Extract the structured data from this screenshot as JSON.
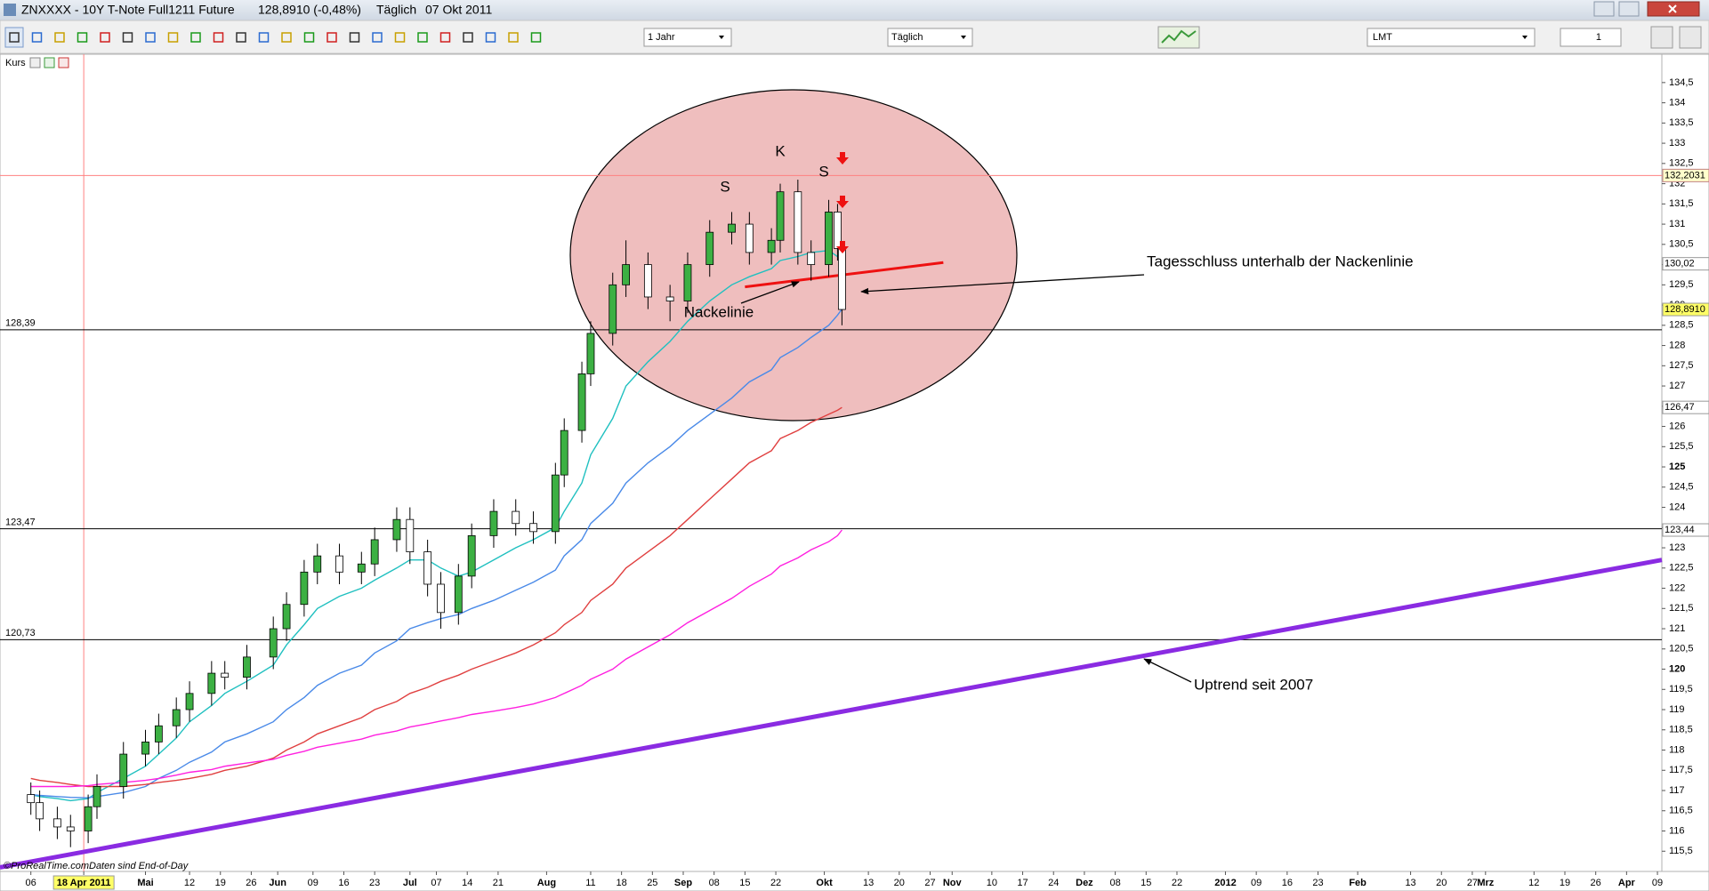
{
  "window": {
    "title": "ZNXXXX - 10Y T-Note Full1211 Future",
    "price": "128,8910 (-0,48%)",
    "period": "Täglich",
    "date": "07 Okt 2011"
  },
  "toolbar": {
    "range": "1 Jahr",
    "interval": "Täglich",
    "order_type": "LMT",
    "quantity": "1"
  },
  "panel_label": "Kurs",
  "footer": {
    "copyright": "©ProRealTime.com",
    "note": "Daten sind End-of-Day"
  },
  "chart_data": {
    "type": "candlestick",
    "x": [
      "2011-04-06",
      "2011-04-08",
      "2011-04-12",
      "2011-04-15",
      "2011-04-19",
      "2011-04-21",
      "2011-04-27",
      "2011-05-02",
      "2011-05-05",
      "2011-05-09",
      "2011-05-12",
      "2011-05-17",
      "2011-05-20",
      "2011-05-25",
      "2011-05-31",
      "2011-06-03",
      "2011-06-07",
      "2011-06-10",
      "2011-06-15",
      "2011-06-20",
      "2011-06-23",
      "2011-06-28",
      "2011-07-01",
      "2011-07-05",
      "2011-07-08",
      "2011-07-12",
      "2011-07-15",
      "2011-07-20",
      "2011-07-25",
      "2011-07-29",
      "2011-08-03",
      "2011-08-05",
      "2011-08-09",
      "2011-08-11",
      "2011-08-16",
      "2011-08-19",
      "2011-08-24",
      "2011-08-29",
      "2011-09-02",
      "2011-09-07",
      "2011-09-12",
      "2011-09-16",
      "2011-09-21",
      "2011-09-23",
      "2011-09-27",
      "2011-09-30",
      "2011-10-04",
      "2011-10-06",
      "2011-10-07"
    ],
    "ohlc": [
      [
        116.9,
        117.2,
        116.4,
        116.7
      ],
      [
        116.7,
        117.0,
        116.0,
        116.3
      ],
      [
        116.3,
        116.6,
        115.8,
        116.1
      ],
      [
        116.1,
        116.4,
        115.6,
        116.0
      ],
      [
        116.0,
        116.9,
        115.7,
        116.6
      ],
      [
        116.6,
        117.4,
        116.3,
        117.1
      ],
      [
        117.1,
        118.2,
        116.8,
        117.9
      ],
      [
        117.9,
        118.5,
        117.6,
        118.2
      ],
      [
        118.2,
        118.9,
        117.9,
        118.6
      ],
      [
        118.6,
        119.3,
        118.3,
        119.0
      ],
      [
        119.0,
        119.7,
        118.7,
        119.4
      ],
      [
        119.4,
        120.2,
        119.1,
        119.9
      ],
      [
        119.9,
        120.2,
        119.5,
        119.8
      ],
      [
        119.8,
        120.6,
        119.5,
        120.3
      ],
      [
        120.3,
        121.3,
        120.0,
        121.0
      ],
      [
        121.0,
        121.9,
        120.7,
        121.6
      ],
      [
        121.6,
        122.7,
        121.3,
        122.4
      ],
      [
        122.4,
        123.1,
        122.1,
        122.8
      ],
      [
        122.8,
        123.1,
        122.1,
        122.4
      ],
      [
        122.4,
        122.9,
        122.1,
        122.6
      ],
      [
        122.6,
        123.5,
        122.3,
        123.2
      ],
      [
        123.2,
        124.0,
        122.9,
        123.7
      ],
      [
        123.7,
        124.0,
        122.6,
        122.9
      ],
      [
        122.9,
        123.2,
        121.8,
        122.1
      ],
      [
        122.1,
        122.4,
        121.0,
        121.4
      ],
      [
        121.4,
        122.6,
        121.1,
        122.3
      ],
      [
        122.3,
        123.6,
        122.0,
        123.3
      ],
      [
        123.3,
        124.2,
        123.0,
        123.9
      ],
      [
        123.9,
        124.2,
        123.3,
        123.6
      ],
      [
        123.6,
        123.9,
        123.1,
        123.4
      ],
      [
        123.4,
        125.1,
        123.1,
        124.8
      ],
      [
        124.8,
        126.2,
        124.5,
        125.9
      ],
      [
        125.9,
        127.6,
        125.6,
        127.3
      ],
      [
        127.3,
        128.6,
        127.0,
        128.3
      ],
      [
        128.3,
        129.8,
        128.0,
        129.5
      ],
      [
        129.5,
        130.6,
        129.2,
        130.0
      ],
      [
        130.0,
        130.3,
        128.9,
        129.2
      ],
      [
        129.2,
        129.5,
        128.6,
        129.1
      ],
      [
        129.1,
        130.3,
        128.8,
        130.0
      ],
      [
        130.0,
        131.1,
        129.7,
        130.8
      ],
      [
        130.8,
        131.3,
        130.5,
        131.0
      ],
      [
        131.0,
        131.3,
        130.0,
        130.3
      ],
      [
        130.3,
        130.9,
        130.0,
        130.6
      ],
      [
        130.6,
        132.0,
        130.3,
        131.8
      ],
      [
        131.8,
        132.1,
        130.0,
        130.3
      ],
      [
        130.3,
        130.6,
        129.6,
        130.0
      ],
      [
        130.0,
        131.6,
        129.7,
        131.3
      ],
      [
        131.3,
        131.5,
        130.1,
        130.4
      ],
      [
        130.4,
        130.4,
        128.5,
        128.891
      ]
    ],
    "up_color": "#3cb043",
    "down_color": "#ffffff",
    "series": [
      {
        "color": "#20c0c0",
        "values": [
          116.9,
          116.85,
          116.8,
          116.75,
          116.8,
          116.95,
          117.3,
          117.6,
          117.9,
          118.3,
          118.7,
          119.1,
          119.4,
          119.7,
          120.1,
          120.6,
          121.1,
          121.5,
          121.8,
          122.0,
          122.2,
          122.5,
          122.7,
          122.7,
          122.5,
          122.3,
          122.4,
          122.7,
          123.0,
          123.2,
          123.5,
          123.9,
          124.6,
          125.3,
          126.2,
          127.0,
          127.6,
          128.1,
          128.6,
          129.1,
          129.5,
          129.7,
          129.9,
          130.1,
          130.2,
          130.3,
          130.35,
          130.2,
          130.02
        ]
      },
      {
        "color": "#4a8ae8",
        "values": [
          116.9,
          116.88,
          116.85,
          116.83,
          116.82,
          116.85,
          116.95,
          117.1,
          117.3,
          117.5,
          117.7,
          117.95,
          118.2,
          118.4,
          118.7,
          119.0,
          119.3,
          119.6,
          119.9,
          120.1,
          120.4,
          120.7,
          121.0,
          121.15,
          121.25,
          121.35,
          121.5,
          121.7,
          121.95,
          122.15,
          122.45,
          122.8,
          123.2,
          123.6,
          124.1,
          124.6,
          125.1,
          125.5,
          125.9,
          126.3,
          126.7,
          127.1,
          127.4,
          127.7,
          127.95,
          128.2,
          128.5,
          128.75,
          128.9
        ]
      },
      {
        "color": "#e04040",
        "values": [
          117.3,
          117.25,
          117.2,
          117.15,
          117.1,
          117.1,
          117.1,
          117.15,
          117.2,
          117.25,
          117.3,
          117.4,
          117.5,
          117.6,
          117.8,
          118.0,
          118.2,
          118.4,
          118.6,
          118.8,
          119.0,
          119.2,
          119.4,
          119.55,
          119.7,
          119.85,
          120.0,
          120.2,
          120.4,
          120.6,
          120.9,
          121.1,
          121.4,
          121.7,
          122.1,
          122.5,
          122.9,
          123.3,
          123.7,
          124.2,
          124.7,
          125.1,
          125.4,
          125.7,
          125.9,
          126.1,
          126.3,
          126.4,
          126.47
        ]
      },
      {
        "color": "#ff20e0",
        "values": [
          117.1,
          117.1,
          117.1,
          117.1,
          117.12,
          117.15,
          117.2,
          117.25,
          117.3,
          117.38,
          117.45,
          117.52,
          117.6,
          117.68,
          117.77,
          117.87,
          117.97,
          118.07,
          118.17,
          118.27,
          118.37,
          118.47,
          118.57,
          118.65,
          118.72,
          118.8,
          118.88,
          118.96,
          119.05,
          119.14,
          119.3,
          119.4,
          119.6,
          119.75,
          120.0,
          120.25,
          120.55,
          120.85,
          121.15,
          121.45,
          121.75,
          122.05,
          122.35,
          122.55,
          122.75,
          122.95,
          123.15,
          123.3,
          123.44
        ]
      }
    ],
    "ylim": [
      115,
      135.2
    ],
    "yticks": [
      {
        "value": 115.5,
        "label": "115,5"
      },
      116,
      {
        "value": 116.5,
        "label": "116,5"
      },
      117,
      {
        "value": 117.5,
        "label": "117,5"
      },
      118,
      {
        "value": 118.5,
        "label": "118,5"
      },
      119,
      {
        "value": 119.5,
        "label": "119,5"
      },
      120,
      {
        "value": 120.5,
        "label": "120,5"
      },
      121,
      {
        "value": 121.5,
        "label": "121,5"
      },
      122,
      {
        "value": 122.5,
        "label": "122,5"
      },
      123,
      {
        "value": 123.5,
        "label": "123,5"
      },
      124,
      {
        "value": 124.5,
        "label": "124,5"
      },
      125,
      {
        "value": 125.5,
        "label": "125,5"
      },
      126,
      {
        "value": 126.5,
        "label": "126,5"
      },
      127,
      {
        "value": 127.5,
        "label": "127,5"
      },
      128,
      {
        "value": 128.5,
        "label": "128,5"
      },
      129,
      {
        "value": 129.5,
        "label": "129,5"
      },
      130,
      {
        "value": 130.5,
        "label": "130,5"
      },
      131,
      {
        "value": 131.5,
        "label": "131,5"
      },
      132,
      {
        "value": 132.5,
        "label": "132,5"
      },
      133,
      {
        "value": 133.5,
        "label": "133,5"
      },
      134,
      {
        "value": 134.5,
        "label": "134,5"
      }
    ],
    "xlim": [
      "2011-03-30",
      "2012-04-10"
    ],
    "xticks": [
      {
        "value": "2011-04-06",
        "label": "06"
      },
      {
        "value": "2011-04-18",
        "label": "18 Apr 2011"
      },
      {
        "value": "2011-05-02",
        "label": "Mai"
      },
      {
        "value": "2011-05-12",
        "label": "12"
      },
      {
        "value": "2011-05-19",
        "label": "19"
      },
      {
        "value": "2011-05-26",
        "label": "26"
      },
      {
        "value": "2011-06-01",
        "label": "Jun"
      },
      {
        "value": "2011-06-09",
        "label": "09"
      },
      {
        "value": "2011-06-16",
        "label": "16"
      },
      {
        "value": "2011-06-23",
        "label": "23"
      },
      {
        "value": "2011-07-01",
        "label": "Jul"
      },
      {
        "value": "2011-07-07",
        "label": "07"
      },
      {
        "value": "2011-07-14",
        "label": "14"
      },
      {
        "value": "2011-07-21",
        "label": "21"
      },
      {
        "value": "2011-08-01",
        "label": "Aug"
      },
      {
        "value": "2011-08-11",
        "label": "11"
      },
      {
        "value": "2011-08-18",
        "label": "18"
      },
      {
        "value": "2011-08-25",
        "label": "25"
      },
      {
        "value": "2011-09-01",
        "label": "Sep"
      },
      {
        "value": "2011-09-08",
        "label": "08"
      },
      {
        "value": "2011-09-15",
        "label": "15"
      },
      {
        "value": "2011-09-22",
        "label": "22"
      },
      {
        "value": "2011-10-03",
        "label": "Okt"
      },
      {
        "value": "2011-10-13",
        "label": "13"
      },
      {
        "value": "2011-10-20",
        "label": "20"
      },
      {
        "value": "2011-10-27",
        "label": "27"
      },
      {
        "value": "2011-11-01",
        "label": "Nov"
      },
      {
        "value": "2011-11-10",
        "label": "10"
      },
      {
        "value": "2011-11-17",
        "label": "17"
      },
      {
        "value": "2011-11-24",
        "label": "24"
      },
      {
        "value": "2011-12-01",
        "label": "Dez"
      },
      {
        "value": "2011-12-08",
        "label": "08"
      },
      {
        "value": "2011-12-15",
        "label": "15"
      },
      {
        "value": "2011-12-22",
        "label": "22"
      },
      {
        "value": "2012-01-02",
        "label": "2012"
      },
      {
        "value": "2012-01-09",
        "label": "09"
      },
      {
        "value": "2012-01-16",
        "label": "16"
      },
      {
        "value": "2012-01-23",
        "label": "23"
      },
      {
        "value": "2012-02-01",
        "label": "Feb"
      },
      {
        "value": "2012-02-13",
        "label": "13"
      },
      {
        "value": "2012-02-20",
        "label": "20"
      },
      {
        "value": "2012-02-27",
        "label": "27"
      },
      {
        "value": "2012-03-01",
        "label": "Mrz"
      },
      {
        "value": "2012-03-12",
        "label": "12"
      },
      {
        "value": "2012-03-19",
        "label": "19"
      },
      {
        "value": "2012-03-26",
        "label": "26"
      },
      {
        "value": "2012-04-02",
        "label": "Apr"
      },
      {
        "value": "2012-04-09",
        "label": "09"
      }
    ],
    "cursor_date": "2011-04-18",
    "cursor_value": {
      "value": 132.2031,
      "label": "132,2031"
    },
    "levels": [
      {
        "value": 128.39,
        "label": "128,39"
      },
      {
        "value": 123.47,
        "label": "123,47"
      },
      {
        "value": 120.73,
        "label": "120,73"
      }
    ],
    "axis_markers": [
      {
        "value": 130.02,
        "label": "130,02",
        "color": "#20c0c0"
      },
      {
        "value": 128.891,
        "label": "128,8910",
        "color": "#000000"
      },
      {
        "value": 126.47,
        "label": "126,47",
        "color": "#e04040"
      },
      {
        "value": 123.44,
        "label": "123,44",
        "color": "#ff20e0"
      }
    ],
    "trend_lines": [
      {
        "color": "#8a2be2",
        "x": [
          "2011-03-30",
          "2012-04-10"
        ],
        "y": [
          115.1,
          122.7
        ]
      },
      {
        "color": "#ee1111",
        "x": [
          "2011-09-15",
          "2011-10-30"
        ],
        "y": [
          129.45,
          130.05
        ]
      }
    ],
    "annotations": {
      "shoulder_left": "S",
      "head": "K",
      "shoulder_right": "S",
      "neckline": "Nackelinie",
      "close_note": "Tagesschluss unterhalb der Nackenlinie",
      "uptrend": "Uptrend seit 2007"
    }
  }
}
